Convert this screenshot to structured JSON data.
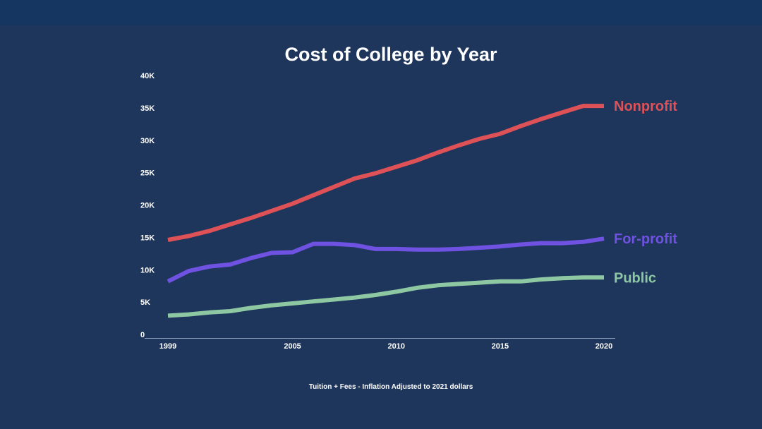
{
  "chart_data": {
    "type": "line",
    "title": "Cost of College by Year",
    "caption": "Tuition + Fees - Inflation Adjusted to 2021 dollars",
    "xlabel": "",
    "ylabel": "",
    "x": [
      1999,
      2000,
      2001,
      2002,
      2003,
      2004,
      2005,
      2006,
      2007,
      2008,
      2009,
      2010,
      2011,
      2012,
      2013,
      2014,
      2015,
      2016,
      2017,
      2018,
      2019,
      2020
    ],
    "xticks": [
      1999,
      2005,
      2010,
      2015,
      2020
    ],
    "xtick_labels": [
      "1999",
      "2005",
      "2010",
      "2015",
      "2020"
    ],
    "ylim": [
      0,
      40000
    ],
    "yticks": [
      0,
      5000,
      10000,
      15000,
      20000,
      25000,
      30000,
      35000,
      40000
    ],
    "ytick_labels": [
      "0",
      "5K",
      "10K",
      "15K",
      "20K",
      "25K",
      "30K",
      "35K",
      "40K"
    ],
    "grid": false,
    "series": [
      {
        "name": "Nonprofit",
        "color": "#dd5157",
        "values": [
          14600,
          15200,
          16000,
          17000,
          18000,
          19100,
          20200,
          21500,
          22800,
          24100,
          24900,
          25900,
          26900,
          28100,
          29200,
          30200,
          31000,
          32200,
          33300,
          34300,
          35300,
          35300
        ]
      },
      {
        "name": "For-profit",
        "color": "#6f52e2",
        "values": [
          8200,
          9800,
          10500,
          10800,
          11800,
          12600,
          12700,
          14000,
          14000,
          13800,
          13200,
          13200,
          13100,
          13100,
          13200,
          13400,
          13600,
          13900,
          14100,
          14100,
          14300,
          14800
        ]
      },
      {
        "name": "Public",
        "color": "#8dc8a3",
        "values": [
          2900,
          3100,
          3400,
          3600,
          4100,
          4500,
          4800,
          5100,
          5400,
          5700,
          6100,
          6600,
          7200,
          7600,
          7800,
          8000,
          8200,
          8200,
          8500,
          8700,
          8800,
          8800
        ]
      }
    ]
  }
}
